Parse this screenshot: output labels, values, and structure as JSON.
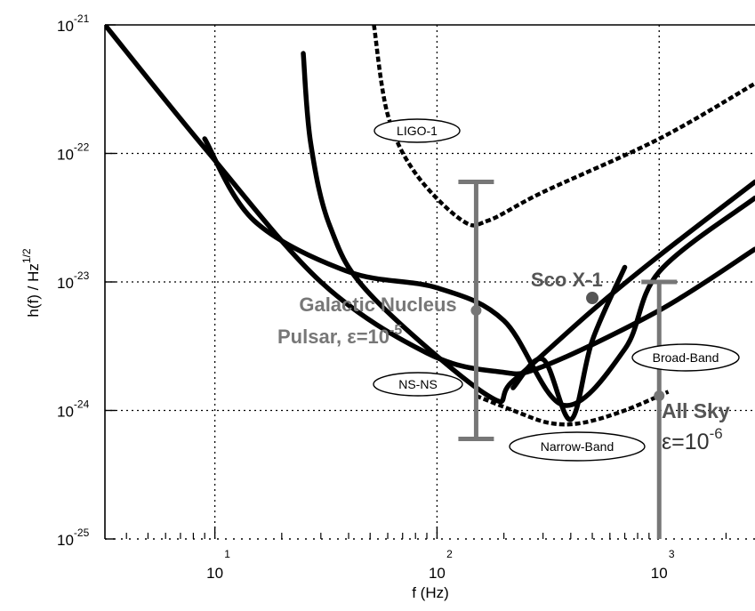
{
  "chart_data": {
    "type": "line",
    "title": "",
    "xlabel": "f (Hz)",
    "ylabel": "h(f) / Hz^1/2",
    "ylabel_parts": {
      "main": "h(f) / Hz",
      "sup": "1/2"
    },
    "xscale": "log",
    "yscale": "log",
    "xlim": [
      3.2,
      2700
    ],
    "ylim": [
      1e-25,
      1e-21
    ],
    "grid": true,
    "x_ticks": [
      {
        "base": "10",
        "exp": "1",
        "value": 10
      },
      {
        "base": "10",
        "exp": "2",
        "value": 100
      },
      {
        "base": "10",
        "exp": "3",
        "value": 1000
      }
    ],
    "y_ticks": [
      {
        "base": "10",
        "exp": "-21",
        "value": 1e-21
      },
      {
        "base": "10",
        "exp": "-22",
        "value": 1e-22
      },
      {
        "base": "10",
        "exp": "-23",
        "value": 1e-23
      },
      {
        "base": "10",
        "exp": "-24",
        "value": 1e-24
      },
      {
        "base": "10",
        "exp": "-25",
        "value": 1e-25
      }
    ],
    "series": [
      {
        "name": "LIGO-1",
        "style": "dashed",
        "points": [
          [
            52,
            1e-21
          ],
          [
            60,
            2e-22
          ],
          [
            80,
            7e-23
          ],
          [
            130,
            3e-23
          ],
          [
            170,
            3e-23
          ],
          [
            300,
            5e-23
          ],
          [
            1000,
            1.3e-22
          ],
          [
            2700,
            3.5e-22
          ]
        ]
      },
      {
        "style": "solid",
        "points": [
          [
            3.2,
            1e-21
          ],
          [
            9,
            1.1e-22
          ],
          [
            30,
            1e-23
          ],
          [
            90,
            2.8e-24
          ],
          [
            190,
            2e-24
          ],
          [
            300,
            2.2e-24
          ],
          [
            1000,
            6e-24
          ],
          [
            2700,
            1.8e-23
          ]
        ]
      },
      {
        "style": "solid",
        "points": [
          [
            25,
            6e-22
          ],
          [
            27,
            1.2e-22
          ],
          [
            33,
            2.7e-23
          ],
          [
            50,
            8e-24
          ],
          [
            170,
            1.3e-24
          ],
          [
            220,
            1.7e-24
          ],
          [
            500,
            6e-24
          ],
          [
            1000,
            1.6e-23
          ],
          [
            2700,
            6e-23
          ]
        ]
      },
      {
        "style": "solid",
        "points": [
          [
            9,
            1.3e-22
          ],
          [
            15,
            3e-23
          ],
          [
            40,
            1.2e-23
          ],
          [
            100,
            9e-24
          ],
          [
            200,
            5e-24
          ],
          [
            370,
            1.1e-24
          ],
          [
            700,
            3e-24
          ],
          [
            1000,
            1.2e-23
          ],
          [
            2700,
            4.5e-23
          ]
        ]
      },
      {
        "name": "Narrow-Band",
        "style": "dashed",
        "points": [
          [
            150,
            1.3e-24
          ],
          [
            220,
            1e-24
          ],
          [
            320,
            8e-25
          ],
          [
            450,
            8e-25
          ],
          [
            700,
            1e-24
          ],
          [
            1100,
            1.4e-24
          ]
        ]
      },
      {
        "style": "solid",
        "points": [
          [
            220,
            1.5e-24
          ],
          [
            300,
            2.5e-24
          ],
          [
            400,
            8.5e-25
          ],
          [
            500,
            3.5e-24
          ],
          [
            700,
            1.3e-23
          ]
        ]
      }
    ],
    "ranges": [
      {
        "name": "Galactic Nucleus Pulsar",
        "x": 150,
        "y_low": 6e-25,
        "y_high": 6e-23,
        "marker_y": 6e-24
      },
      {
        "name": "All Sky",
        "x": 1000,
        "y_low": 1e-25,
        "y_high": 1e-23,
        "marker_y": 1.3e-24
      }
    ],
    "points": [
      {
        "name": "Sco X-1",
        "x": 500,
        "y": 7.5e-24
      }
    ],
    "annotations": {
      "ligo1": "LIGO-1",
      "nsns": "NS-NS",
      "narrowband": "Narrow-Band",
      "broadband": "Broad-Band",
      "galactic_line1": "Galactic Nucleus",
      "galactic_line2": "Pulsar, ε=10",
      "galactic_exp": "-5",
      "scox1": "Sco X-1",
      "allsky_line1": "All Sky",
      "allsky_line2": "ε=10",
      "allsky_exp": "-6"
    }
  }
}
